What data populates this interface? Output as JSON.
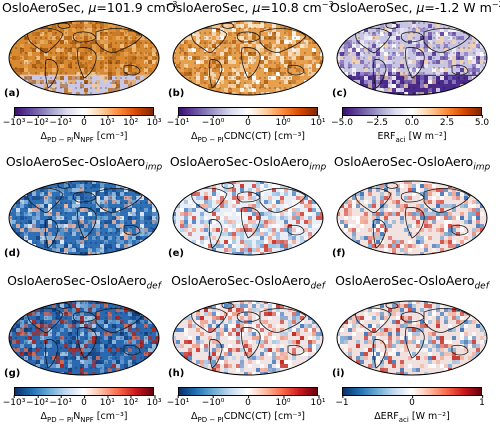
{
  "chart_data": {
    "type": "heatmap",
    "rows": [
      {
        "panels": [
          {
            "title_main": "OsloAeroSec, ",
            "title_mu": "μ",
            "title_rest": "=101.9 cm",
            "title_sup": "−3",
            "letter": "(a)",
            "scheme": "brown"
          },
          {
            "title_main": "OsloAeroSec, ",
            "title_mu": "μ",
            "title_rest": "=10.8 cm",
            "title_sup": "−3",
            "letter": "(b)",
            "scheme": "brown2"
          },
          {
            "title_main": "OsloAeroSec, ",
            "title_mu": "μ",
            "title_rest": "=-1.2 W m",
            "title_sup": "−2",
            "letter": "(c)",
            "scheme": "purple"
          }
        ],
        "colorbars": [
          {
            "ticks": [
              "−10³",
              "−10²",
              "−10¹",
              "0",
              "10¹",
              "10²",
              "10³"
            ],
            "label_pre": "Δ",
            "label_sub": "PD − PI",
            "label_post": "N",
            "label_sub2": "NPF",
            "label_unit": " [cm⁻³]",
            "palette": "purple-orange"
          },
          {
            "ticks": [
              "−10¹",
              "−10⁰",
              "0",
              "10⁰",
              "10¹"
            ],
            "label_pre": "Δ",
            "label_sub": "PD − PI",
            "label_post": "CDNC(CT) [cm⁻³]",
            "label_sub2": "",
            "label_unit": "",
            "palette": "purple-orange"
          },
          {
            "ticks": [
              "−5.0",
              "−2.5",
              "0.0",
              "2.5",
              "5.0"
            ],
            "label_pre": "ERF",
            "label_sub": "aci",
            "label_post": " [W m⁻²]",
            "label_sub2": "",
            "label_unit": "",
            "palette": "purple-orange"
          }
        ]
      },
      {
        "panels": [
          {
            "title_main": "OsloAeroSec-OsloAero",
            "title_sub": "imp",
            "letter": "(d)",
            "scheme": "blue"
          },
          {
            "title_main": "OsloAeroSec-OsloAero",
            "title_sub": "imp",
            "letter": "(e)",
            "scheme": "mixed"
          },
          {
            "title_main": "OsloAeroSec-OsloAero",
            "title_sub": "imp",
            "letter": "(f)",
            "scheme": "redblue"
          }
        ]
      },
      {
        "panels": [
          {
            "title_main": "OsloAeroSec-OsloAero",
            "title_sub": "def",
            "letter": "(g)",
            "scheme": "blue2"
          },
          {
            "title_main": "OsloAeroSec-OsloAero",
            "title_sub": "def",
            "letter": "(h)",
            "scheme": "mixed2"
          },
          {
            "title_main": "OsloAeroSec-OsloAero",
            "title_sub": "def",
            "letter": "(i)",
            "scheme": "redblue2"
          }
        ],
        "colorbars": [
          {
            "ticks": [
              "−10³",
              "−10²",
              "−10¹",
              "0",
              "10¹",
              "10²",
              "10³"
            ],
            "label_pre": "Δ",
            "label_sub": "PD − PI",
            "label_post": "N",
            "label_sub2": "NPF",
            "label_unit": " [cm⁻³]",
            "palette": "blue-red"
          },
          {
            "ticks": [
              "−10¹",
              "−10⁰",
              "0",
              "10⁰",
              "10¹"
            ],
            "label_pre": "Δ",
            "label_sub": "PD − PI",
            "label_post": "CDNC(CT) [cm⁻³]",
            "label_sub2": "",
            "label_unit": "",
            "palette": "blue-red"
          },
          {
            "ticks": [
              "−1",
              "0",
              "1"
            ],
            "label_pre": "ΔERF",
            "label_sub": "aci",
            "label_post": " [W m⁻²]",
            "label_sub2": "",
            "label_unit": "",
            "palette": "blue-red"
          }
        ]
      }
    ],
    "palettes": {
      "purple-orange": [
        "#3b0f70",
        "#6a51a3",
        "#9e9ac8",
        "#dadaeb",
        "#ffffff",
        "#fdd0a2",
        "#fd8d3c",
        "#d94801",
        "#7f2704"
      ],
      "blue-red": [
        "#08306b",
        "#2171b5",
        "#6baed6",
        "#c6dbef",
        "#ffffff",
        "#fcbba1",
        "#fb6a4a",
        "#cb181d",
        "#67000d"
      ]
    }
  }
}
